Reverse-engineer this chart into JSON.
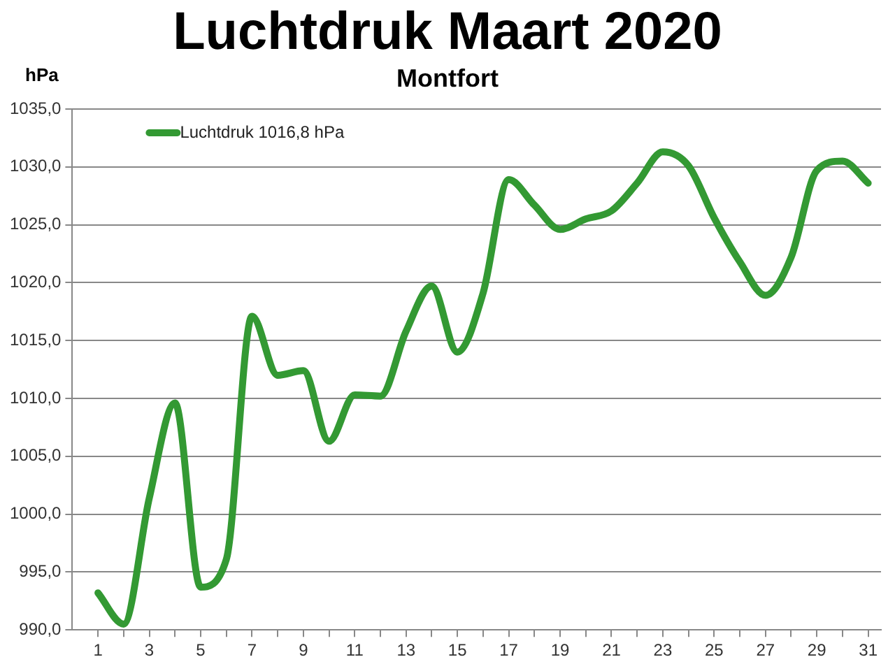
{
  "chart_data": {
    "type": "line",
    "title": "Luchtdruk Maart 2020",
    "subtitle": "Montfort",
    "ylabel": "hPa",
    "x": [
      1,
      2,
      3,
      4,
      5,
      6,
      7,
      8,
      9,
      10,
      11,
      12,
      13,
      14,
      15,
      16,
      17,
      18,
      19,
      20,
      21,
      22,
      23,
      24,
      25,
      26,
      27,
      28,
      29,
      30,
      31
    ],
    "series": [
      {
        "name": "Luchtdruk 1016,8 hPa",
        "color": "#339933",
        "values": [
          993.2,
          990.5,
          1001.4,
          1009.6,
          993.7,
          996.1,
          1017.1,
          1012.0,
          1012.4,
          1006.3,
          1010.3,
          1010.2,
          1015.8,
          1019.7,
          1014.0,
          1019.1,
          1028.9,
          1026.7,
          1024.6,
          1025.5,
          1026.2,
          1028.6,
          1031.3,
          1030.1,
          1025.6,
          1021.8,
          1018.9,
          1022.2,
          1029.7,
          1030.5,
          1028.6
        ]
      }
    ],
    "xlim": [
      0,
      31.5
    ],
    "xticks": [
      1,
      {
        "value": 2,
        "label": null
      },
      3,
      {
        "value": 4,
        "label": null
      },
      5,
      {
        "value": 6,
        "label": null
      },
      7,
      {
        "value": 8,
        "label": null
      },
      9,
      {
        "value": 10,
        "label": null
      },
      11,
      {
        "value": 12,
        "label": null
      },
      13,
      {
        "value": 14,
        "label": null
      },
      15,
      {
        "value": 16,
        "label": null
      },
      17,
      {
        "value": 18,
        "label": null
      },
      19,
      {
        "value": 20,
        "label": null
      },
      21,
      {
        "value": 22,
        "label": null
      },
      23,
      {
        "value": 24,
        "label": null
      },
      25,
      {
        "value": 26,
        "label": null
      },
      27,
      {
        "value": 28,
        "label": null
      },
      29,
      {
        "value": 30,
        "label": null
      },
      31
    ],
    "ylim": [
      990,
      1035
    ],
    "yticks": [
      {
        "value": 990,
        "label": "990,0"
      },
      {
        "value": 995,
        "label": "995,0"
      },
      {
        "value": 1000,
        "label": "1000,0"
      },
      {
        "value": 1005,
        "label": "1005,0"
      },
      {
        "value": 1010,
        "label": "1010,0"
      },
      {
        "value": 1015,
        "label": "1015,0"
      },
      {
        "value": 1020,
        "label": "1020,0"
      },
      {
        "value": 1025,
        "label": "1025,0"
      },
      {
        "value": 1030,
        "label": "1030,0"
      },
      {
        "value": 1035,
        "label": "1035,0"
      }
    ],
    "grid": "y",
    "legend": "top left",
    "marker": "none",
    "line_style": "solid"
  }
}
